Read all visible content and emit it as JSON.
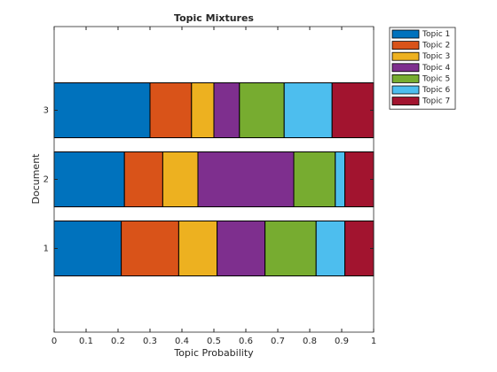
{
  "chart_data": {
    "type": "stacked-barh",
    "title": "Topic Mixtures",
    "x_label": "Topic Probability",
    "y_label": "Document",
    "categories": [
      "1",
      "2",
      "3"
    ],
    "series": [
      {
        "name": "Topic 1",
        "color": "#0072bd",
        "values": [
          0.21,
          0.22,
          0.3
        ]
      },
      {
        "name": "Topic 2",
        "color": "#d95319",
        "values": [
          0.18,
          0.12,
          0.13
        ]
      },
      {
        "name": "Topic 3",
        "color": "#edb120",
        "values": [
          0.12,
          0.11,
          0.07
        ]
      },
      {
        "name": "Topic 4",
        "color": "#7e2f8e",
        "values": [
          0.15,
          0.3,
          0.08
        ]
      },
      {
        "name": "Topic 5",
        "color": "#77ac30",
        "values": [
          0.16,
          0.13,
          0.14
        ]
      },
      {
        "name": "Topic 6",
        "color": "#4dbeee",
        "values": [
          0.09,
          0.03,
          0.15
        ]
      },
      {
        "name": "Topic 7",
        "color": "#a2142f",
        "values": [
          0.09,
          0.09,
          0.13
        ]
      }
    ],
    "xlim": [
      0,
      1
    ],
    "xticks": [
      0,
      0.1,
      0.2,
      0.3,
      0.4,
      0.5,
      0.6,
      0.7,
      0.8,
      0.9,
      1
    ],
    "legend": "outside-top-right"
  }
}
